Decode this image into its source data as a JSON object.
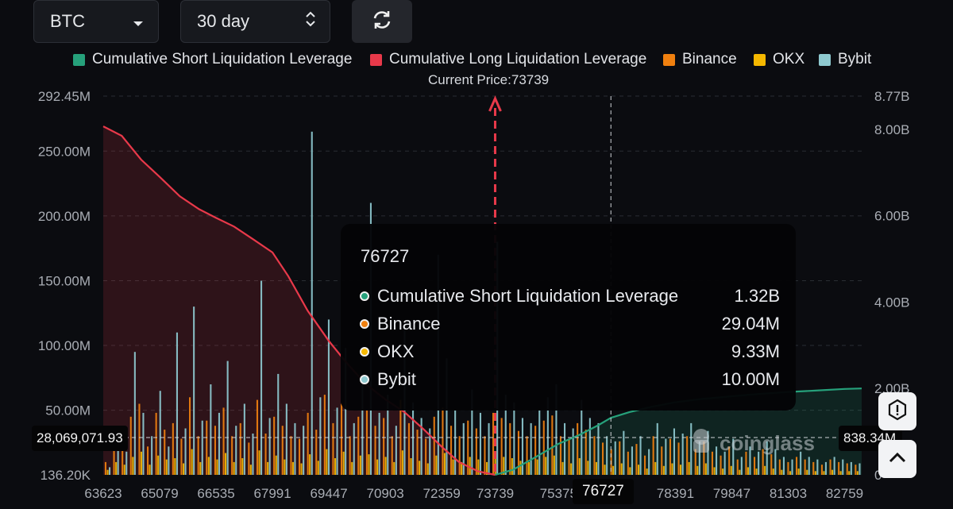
{
  "controls": {
    "coin": "BTC",
    "period": "30 day"
  },
  "legend": [
    {
      "label": "Cumulative Short Liquidation Leverage",
      "color": "#26a17b"
    },
    {
      "label": "Cumulative Long Liquidation Leverage",
      "color": "#e8394a"
    },
    {
      "label": "Binance",
      "color": "#f0800f"
    },
    {
      "label": "OKX",
      "color": "#f5b800"
    },
    {
      "label": "Bybit",
      "color": "#8ec9cf"
    }
  ],
  "current_price_text": "Current Price:73739",
  "crosshair": {
    "y_value": "28,069,071.93",
    "y2_value": "838.34M",
    "x_value": "76727"
  },
  "tooltip": {
    "title": "76727",
    "rows": [
      {
        "label": "Cumulative Short Liquidation Leverage",
        "value": "1.32B",
        "color": "#26a17b"
      },
      {
        "label": "Binance",
        "value": "29.04M",
        "color": "#f0800f"
      },
      {
        "label": "OKX",
        "value": "9.33M",
        "color": "#f5b800"
      },
      {
        "label": "Bybit",
        "value": "10.00M",
        "color": "#8ec9cf"
      }
    ]
  },
  "watermark": "coinglass",
  "chart_data": {
    "type": "bar",
    "current_price": 73739,
    "x_ticks": [
      "63623",
      "65079",
      "66535",
      "67991",
      "69447",
      "70903",
      "72359",
      "73739",
      "75375",
      "76727",
      "78391",
      "79847",
      "81303",
      "82759"
    ],
    "y_left_ticks": [
      "292.45M",
      "250.00M",
      "200.00M",
      "150.00M",
      "100.00M",
      "50.00M",
      "136.20K"
    ],
    "y_left_values": [
      292450000,
      250000000,
      200000000,
      150000000,
      100000000,
      50000000,
      136200
    ],
    "y_right_ticks": [
      "8.77B",
      "8.00B",
      "6.00B",
      "4.00B",
      "2.00B",
      "0"
    ],
    "y_right_values": [
      8770000000,
      8000000000,
      6000000000,
      4000000000,
      2000000000,
      0
    ],
    "ylim_left": [
      136200,
      292450000
    ],
    "ylim_right": [
      0,
      8770000000
    ],
    "grid": true,
    "legend_position": "top",
    "cumulative_long": {
      "x": [
        63623,
        64100,
        64600,
        65079,
        65600,
        66100,
        66535,
        67000,
        67500,
        67991,
        68400,
        68900,
        69447,
        69900,
        70400,
        70903,
        71400,
        71900,
        72359,
        72800,
        73300,
        73739
      ],
      "y": [
        8070000000.0,
        7850000000.0,
        7300000000.0,
        6900000000.0,
        6450000000.0,
        6150000000.0,
        5950000000.0,
        5750000000.0,
        5450000000.0,
        5150000000.0,
        4600000000.0,
        3800000000.0,
        3100000000.0,
        2600000000.0,
        2100000000.0,
        1750000000.0,
        1450000000.0,
        1050000000.0,
        650000000.0,
        300000000.0,
        80000000.0,
        0.0
      ]
    },
    "cumulative_short": {
      "x": [
        73739,
        74200,
        74800,
        75375,
        75900,
        76400,
        76727,
        77200,
        77800,
        78391,
        79000,
        79847,
        80500,
        81303,
        82000,
        82759,
        83200
      ],
      "y": [
        0.0,
        120000000.0,
        420000000.0,
        720000000.0,
        920000000.0,
        1150000000.0,
        1320000000.0,
        1450000000.0,
        1580000000.0,
        1680000000.0,
        1750000000.0,
        1820000000.0,
        1870000000.0,
        1920000000.0,
        1950000000.0,
        1990000000.0,
        2000000000.0
      ]
    },
    "series_bars": [
      {
        "name": "Binance",
        "values_m": [
          10,
          30,
          25,
          45,
          55,
          22,
          48,
          35,
          40,
          28,
          60,
          30,
          42,
          38,
          52,
          30,
          40,
          25,
          58,
          32,
          45,
          38,
          30,
          28,
          48,
          35,
          62,
          40,
          55,
          30,
          45,
          50,
          38,
          44,
          30,
          58,
          40,
          35,
          28,
          45,
          52,
          38,
          30,
          42,
          36,
          30,
          48,
          44,
          40,
          34,
          30,
          38,
          42,
          46,
          30,
          28,
          40,
          35,
          30,
          25,
          20,
          26,
          18,
          24,
          15,
          30,
          22,
          28,
          25,
          30,
          20,
          26,
          18,
          15,
          22,
          12,
          18,
          14,
          20,
          16,
          12,
          10,
          14,
          12,
          10,
          8,
          12,
          10,
          9,
          8
        ]
      },
      {
        "name": "OKX",
        "values_m": [
          4,
          10,
          8,
          14,
          18,
          8,
          15,
          12,
          13,
          9,
          20,
          10,
          14,
          12,
          17,
          10,
          13,
          8,
          19,
          10,
          15,
          12,
          10,
          9,
          16,
          11,
          20,
          13,
          18,
          10,
          15,
          16,
          12,
          14,
          10,
          19,
          13,
          11,
          9,
          15,
          17,
          12,
          10,
          14,
          12,
          10,
          16,
          14,
          13,
          11,
          10,
          12,
          14,
          15,
          10,
          9,
          13,
          11,
          10,
          8,
          7,
          9,
          6,
          8,
          5,
          10,
          7,
          9,
          8,
          10,
          7,
          9,
          6,
          5,
          7,
          4,
          6,
          5,
          7,
          5,
          4,
          3,
          5,
          4,
          3,
          3,
          4,
          3,
          3,
          3
        ]
      },
      {
        "name": "Bybit",
        "values_m": [
          6,
          26,
          18,
          95,
          48,
          30,
          65,
          22,
          110,
          36,
          130,
          42,
          70,
          48,
          88,
          38,
          55,
          32,
          150,
          44,
          78,
          55,
          40,
          38,
          265,
          60,
          120,
          52,
          98,
          40,
          70,
          210,
          48,
          62,
          38,
          112,
          56,
          44,
          36,
          170,
          90,
          50,
          40,
          66,
          48,
          40,
          180,
          62,
          56,
          44,
          40,
          50,
          60,
          70,
          40,
          36,
          58,
          44,
          40,
          30,
          26,
          34,
          22,
          30,
          20,
          40,
          28,
          36,
          32,
          40,
          26,
          34,
          22,
          18,
          28,
          14,
          22,
          18,
          26,
          20,
          14,
          12,
          18,
          14,
          12,
          10,
          14,
          12,
          10,
          9
        ]
      }
    ]
  }
}
